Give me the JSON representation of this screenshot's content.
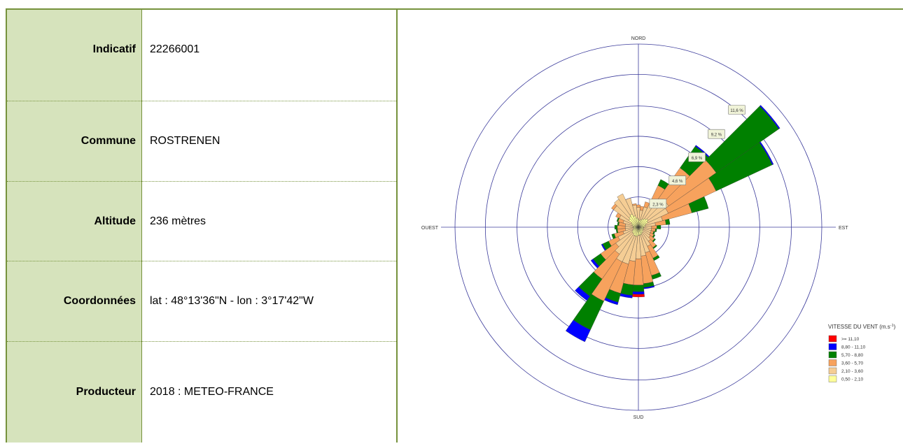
{
  "station": {
    "rows": [
      {
        "label": "Indicatif",
        "value": "22266001"
      },
      {
        "label": "Commune",
        "value": "ROSTRENEN"
      },
      {
        "label": "Altitude",
        "value": "236 mètres"
      },
      {
        "label": "Coordonnées",
        "value": "lat : 48°13'36\"N - lon : 3°17'42\"W"
      },
      {
        "label": "Producteur",
        "value": "2018 : METEO-FRANCE"
      }
    ]
  },
  "colors": {
    "border": "#76923c",
    "label_bg": "#d6e3bc"
  },
  "chart_data": {
    "type": "wind-rose",
    "directions": [
      "NORD",
      "EST",
      "SUD",
      "OUEST"
    ],
    "ring_labels": [
      "2,3 %",
      "4,6 %",
      "6,9 %",
      "9,2 %",
      "11,6 %"
    ],
    "rings_percent": [
      2.3,
      4.6,
      6.9,
      9.2,
      11.6
    ],
    "max_percent": 13.9,
    "legend_title": "VITESSE DU VENT (m.s",
    "legend_title_sup": "-1",
    "legend_title_end": ")",
    "classes": [
      {
        "label": ">= 11,10",
        "color": "#ff0000"
      },
      {
        "label": "8,80 - 11,10",
        "color": "#0000ff"
      },
      {
        "label": "5,70 - 8,80",
        "color": "#008000"
      },
      {
        "label": "3,60 - 5,70",
        "color": "#f7a25d"
      },
      {
        "label": "2,10 - 3,60",
        "color": "#f5cd94"
      },
      {
        "label": "0,50 - 2,10",
        "color": "#ffff99"
      }
    ],
    "sector_width_deg": 10,
    "sectors": [
      {
        "dir": 0,
        "cum": [
          0.6,
          1.5,
          1.7,
          1.7,
          1.7,
          1.7
        ]
      },
      {
        "dir": 10,
        "cum": [
          0.5,
          1.3,
          1.6,
          1.6,
          1.6,
          1.6
        ]
      },
      {
        "dir": 20,
        "cum": [
          0.6,
          1.6,
          2.0,
          2.0,
          2.0,
          2.0
        ]
      },
      {
        "dir": 30,
        "cum": [
          0.7,
          2.0,
          3.5,
          4.0,
          4.0,
          4.0
        ]
      },
      {
        "dir": 40,
        "cum": [
          0.8,
          2.6,
          5.5,
          7.5,
          7.6,
          7.6
        ]
      },
      {
        "dir": 50,
        "cum": [
          0.9,
          2.8,
          7.2,
          13.0,
          13.1,
          13.1
        ]
      },
      {
        "dir": 60,
        "cum": [
          0.8,
          2.5,
          6.5,
          11.2,
          11.3,
          11.3
        ]
      },
      {
        "dir": 70,
        "cum": [
          0.6,
          1.9,
          4.2,
          5.5,
          5.5,
          5.5
        ]
      },
      {
        "dir": 80,
        "cum": [
          0.5,
          1.3,
          2.1,
          2.4,
          2.4,
          2.4
        ]
      },
      {
        "dir": 90,
        "cum": [
          0.4,
          1.0,
          1.4,
          1.7,
          1.7,
          1.7
        ]
      },
      {
        "dir": 100,
        "cum": [
          0.4,
          1.0,
          1.3,
          1.4,
          1.4,
          1.4
        ]
      },
      {
        "dir": 110,
        "cum": [
          0.4,
          1.0,
          1.2,
          1.3,
          1.3,
          1.3
        ]
      },
      {
        "dir": 120,
        "cum": [
          0.4,
          1.0,
          1.3,
          1.4,
          1.4,
          1.4
        ]
      },
      {
        "dir": 130,
        "cum": [
          0.4,
          1.1,
          1.5,
          1.6,
          1.6,
          1.6
        ]
      },
      {
        "dir": 140,
        "cum": [
          0.5,
          1.3,
          1.9,
          2.0,
          2.0,
          2.0
        ]
      },
      {
        "dir": 150,
        "cum": [
          0.5,
          1.6,
          2.6,
          2.8,
          2.8,
          2.8
        ]
      },
      {
        "dir": 160,
        "cum": [
          0.6,
          2.0,
          3.8,
          4.1,
          4.1,
          4.1
        ]
      },
      {
        "dir": 170,
        "cum": [
          0.6,
          2.2,
          4.3,
          4.6,
          4.7,
          4.7
        ]
      },
      {
        "dir": 180,
        "cum": [
          0.6,
          2.4,
          4.4,
          4.9,
          5.1,
          5.3
        ]
      },
      {
        "dir": 190,
        "cum": [
          0.7,
          2.6,
          4.4,
          5.2,
          5.4,
          5.4
        ]
      },
      {
        "dir": 200,
        "cum": [
          0.7,
          2.9,
          5.2,
          5.9,
          6.1,
          6.1
        ]
      },
      {
        "dir": 210,
        "cum": [
          0.7,
          2.9,
          6.2,
          8.6,
          9.6,
          9.6
        ]
      },
      {
        "dir": 220,
        "cum": [
          0.6,
          2.5,
          4.8,
          6.4,
          6.8,
          6.8
        ]
      },
      {
        "dir": 230,
        "cum": [
          0.6,
          2.1,
          3.5,
          4.2,
          4.4,
          4.4
        ]
      },
      {
        "dir": 240,
        "cum": [
          0.5,
          1.7,
          2.5,
          3.0,
          3.1,
          3.1
        ]
      },
      {
        "dir": 250,
        "cum": [
          0.4,
          1.2,
          1.9,
          2.1,
          2.1,
          2.1
        ]
      },
      {
        "dir": 260,
        "cum": [
          0.4,
          1.0,
          1.6,
          1.7,
          1.7,
          1.7
        ]
      },
      {
        "dir": 270,
        "cum": [
          0.4,
          1.0,
          1.6,
          1.8,
          1.8,
          1.8
        ]
      },
      {
        "dir": 280,
        "cum": [
          0.4,
          1.0,
          1.5,
          1.6,
          1.6,
          1.6
        ]
      },
      {
        "dir": 290,
        "cum": [
          0.5,
          1.2,
          1.6,
          1.7,
          1.7,
          1.7
        ]
      },
      {
        "dir": 300,
        "cum": [
          0.6,
          1.6,
          1.9,
          1.9,
          1.9,
          1.9
        ]
      },
      {
        "dir": 310,
        "cum": [
          0.9,
          2.3,
          2.5,
          2.5,
          2.5,
          2.5
        ]
      },
      {
        "dir": 320,
        "cum": [
          1.0,
          2.6,
          2.6,
          2.6,
          2.6,
          2.6
        ]
      },
      {
        "dir": 330,
        "cum": [
          1.1,
          2.8,
          2.8,
          2.8,
          2.8,
          2.8
        ]
      },
      {
        "dir": 340,
        "cum": [
          0.9,
          2.3,
          2.3,
          2.3,
          2.3,
          2.3
        ]
      },
      {
        "dir": 350,
        "cum": [
          0.7,
          1.7,
          1.8,
          1.8,
          1.8,
          1.8
        ]
      }
    ]
  }
}
